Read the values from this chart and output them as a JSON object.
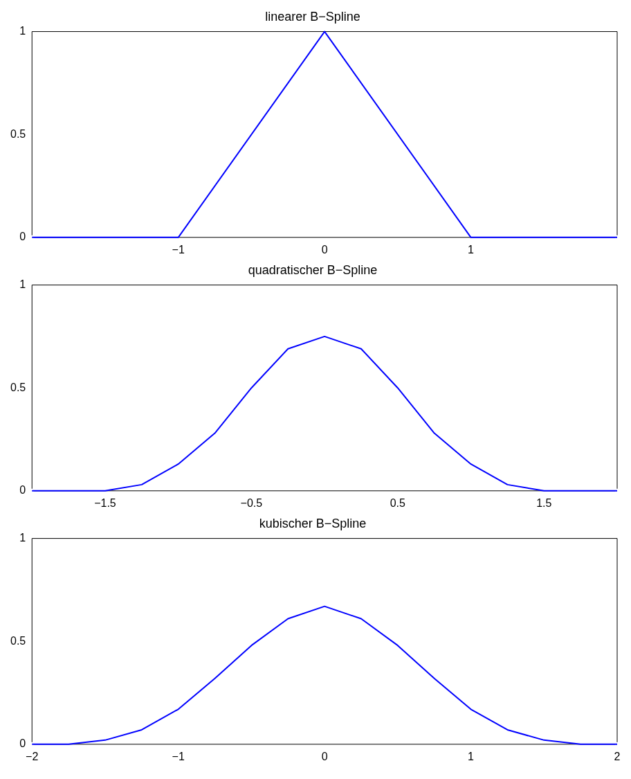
{
  "chart_data": [
    {
      "type": "line",
      "title": "linearer B−Spline",
      "x": [
        -2,
        -1,
        0,
        1,
        2
      ],
      "series": [
        {
          "color": "#0000ff",
          "values": [
            0,
            0,
            1,
            0,
            0
          ]
        }
      ],
      "xlim": [
        -2,
        2
      ],
      "xticks": [
        -1,
        0,
        1
      ],
      "ylim": [
        0,
        1
      ],
      "yticks": [
        0,
        0.5,
        1
      ],
      "grid": false,
      "legend": false
    },
    {
      "type": "line",
      "title": "quadratischer B−Spline",
      "x": [
        -2,
        -1.75,
        -1.5,
        -1.25,
        -1,
        -0.75,
        -0.5,
        -0.25,
        0,
        0.25,
        0.5,
        0.75,
        1,
        1.25,
        1.5,
        1.75,
        2
      ],
      "series": [
        {
          "color": "#0000ff",
          "values": [
            0,
            0,
            0,
            0.03,
            0.13,
            0.28,
            0.5,
            0.69,
            0.75,
            0.69,
            0.5,
            0.28,
            0.13,
            0.03,
            0,
            0,
            0
          ]
        }
      ],
      "xlim": [
        -2,
        2
      ],
      "xticks": [
        {
          "value": -1.5,
          "label": "−1.5"
        },
        {
          "value": -0.5,
          "label": "−0.5"
        },
        0.5,
        1.5
      ],
      "ylim": [
        0,
        1
      ],
      "yticks": [
        0,
        0.5,
        1
      ],
      "grid": false,
      "legend": false
    },
    {
      "type": "line",
      "title": "kubischer B−Spline",
      "x": [
        -2,
        -1.75,
        -1.5,
        -1.25,
        -1,
        -0.75,
        -0.5,
        -0.25,
        0,
        0.25,
        0.5,
        0.75,
        1,
        1.25,
        1.5,
        1.75,
        2
      ],
      "series": [
        {
          "color": "#0000ff",
          "values": [
            0,
            0,
            0.02,
            0.07,
            0.17,
            0.32,
            0.48,
            0.61,
            0.67,
            0.61,
            0.48,
            0.32,
            0.17,
            0.07,
            0.02,
            0,
            0
          ]
        }
      ],
      "xlim": [
        -2,
        2
      ],
      "xticks": [
        {
          "value": -2,
          "label": "−2"
        },
        {
          "value": -1,
          "label": "−1"
        },
        0,
        1,
        2
      ],
      "ylim": [
        0,
        1
      ],
      "yticks": [
        0,
        0.5,
        1
      ],
      "grid": false,
      "legend": false
    }
  ]
}
